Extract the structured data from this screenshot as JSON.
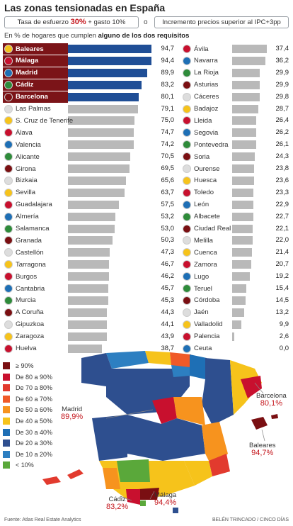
{
  "title": "Las zonas tensionadas en España",
  "criteria": {
    "left_prefix": "Tasa de esfuerzo ",
    "left_pct": "30%",
    "left_suffix": " + gasto 10%",
    "or": "o",
    "right": "Incremento precios superior al IPC+3pp"
  },
  "subtitle_prefix": "En % de hogares que cumplen ",
  "subtitle_bold": "alguno de los dos requisitos",
  "colors": {
    "highlight_label": "#7b1418",
    "highlight_bar": "#1f4e96",
    "bar": "#b9b9b9",
    "value_accent": "#c4161c"
  },
  "chart_data": [
    {
      "type": "bar",
      "orientation": "horizontal",
      "title": "",
      "categories": [
        "Baleares",
        "Málaga",
        "Madrid",
        "Cádiz",
        "Barcelona",
        "Las Palmas",
        "S. Cruz de Tenerife",
        "Álava",
        "Valencia",
        "Alicante",
        "Girona",
        "Bizkaia",
        "Sevilla",
        "Guadalajara",
        "Almería",
        "Salamanca",
        "Granada",
        "Castellón",
        "Tarragona",
        "Burgos",
        "Cantabria",
        "Murcia",
        "A Coruña",
        "Gipuzkoa",
        "Zaragoza",
        "Huelva"
      ],
      "values": [
        94.7,
        94.4,
        89.9,
        83.2,
        80.1,
        79.1,
        75.0,
        74.7,
        74.2,
        70.5,
        69.5,
        65.6,
        63.7,
        57.5,
        53.2,
        53.0,
        50.3,
        47.3,
        46.7,
        46.2,
        45.7,
        45.3,
        44.3,
        44.1,
        43.9,
        38.7
      ],
      "value_labels": [
        "94,7",
        "94,4",
        "89,9",
        "83,2",
        "80,1",
        "79,1",
        "75,0",
        "74,7",
        "74,2",
        "70,5",
        "69,5",
        "65,6",
        "63,7",
        "57,5",
        "53,2",
        "53,0",
        "50,3",
        "47,3",
        "46,7",
        "46,2",
        "45,7",
        "45,3",
        "44,3",
        "44,1",
        "43,9",
        "38,7"
      ],
      "highlighted": [
        "Baleares",
        "Málaga",
        "Madrid",
        "Cádiz",
        "Barcelona"
      ],
      "xlim": [
        0,
        100
      ]
    },
    {
      "type": "bar",
      "orientation": "horizontal",
      "title": "",
      "categories": [
        "Ávila",
        "Navarra",
        "La Rioja",
        "Asturias",
        "Cáceres",
        "Badajoz",
        "Lleida",
        "Segovia",
        "Pontevedra",
        "Soria",
        "Ourense",
        "Huesca",
        "Toledo",
        "León",
        "Albacete",
        "Ciudad Real",
        "Melilla",
        "Cuenca",
        "Zamora",
        "Lugo",
        "Teruel",
        "Córdoba",
        "Jaén",
        "Valladolid",
        "Palencia",
        "Ceuta"
      ],
      "values": [
        37.4,
        36.2,
        29.9,
        29.9,
        29.8,
        28.7,
        26.4,
        26.2,
        26.1,
        24.3,
        23.8,
        23.6,
        23.3,
        22.9,
        22.7,
        22.1,
        22.0,
        21.4,
        20.7,
        19.2,
        15.4,
        14.5,
        13.2,
        9.9,
        2.6,
        0.0
      ],
      "value_labels": [
        "37,4",
        "36,2",
        "29,9",
        "29,9",
        "29,8",
        "28,7",
        "26,4",
        "26,2",
        "26,1",
        "24,3",
        "23,8",
        "23,6",
        "23,3",
        "22,9",
        "22,7",
        "22,1",
        "22,0",
        "21,4",
        "20,7",
        "19,2",
        "15,4",
        "14,5",
        "13,2",
        "9,9",
        "2,6",
        "0,0"
      ],
      "xlim": [
        0,
        40
      ]
    }
  ],
  "map": {
    "legend": [
      {
        "label": "≥ 90%",
        "color": "#7a0f12"
      },
      {
        "label": "De 80 a 90%",
        "color": "#c8102e"
      },
      {
        "label": "De 70 a 80%",
        "color": "#e23a2e"
      },
      {
        "label": "De 60 a 70%",
        "color": "#f05a28"
      },
      {
        "label": "De 50 a 60%",
        "color": "#f7931e"
      },
      {
        "label": "De 40 a 50%",
        "color": "#f6c31b"
      },
      {
        "label": "De 30 a 40%",
        "color": "#1e6fb5"
      },
      {
        "label": "De 20 a 30%",
        "color": "#2e4f8f"
      },
      {
        "label": "De 10 a 20%",
        "color": "#2d7fc1"
      },
      {
        "label": "< 10%",
        "color": "#5aa83a"
      }
    ],
    "callouts": {
      "madrid": {
        "name": "Madrid",
        "value": "89,9%"
      },
      "barcelona": {
        "name": "Barcelona",
        "value": "80,1%"
      },
      "baleares": {
        "name": "Baleares",
        "value": "94,7%"
      },
      "cadiz": {
        "name": "Cádiz",
        "value": "83,2%"
      },
      "malaga": {
        "name": "Málaga",
        "value": "94,4%"
      }
    }
  },
  "source": "Fuente: Atlas Real Estate Analytics",
  "credit": "BELÉN TRINCADO / CINCO DÍAS"
}
